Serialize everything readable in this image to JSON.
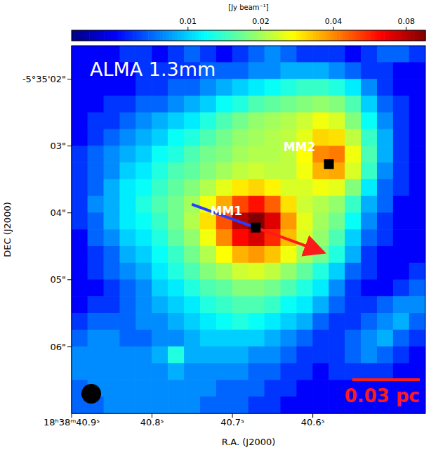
{
  "chart_data": {
    "type": "heatmap",
    "title": "ALMA 1.3mm",
    "x_label": "R.A. (J2000)",
    "y_label": "DEC (J2000)",
    "xlim": [
      40.9,
      40.46
    ],
    "xticks": [
      {
        "value": 40.9,
        "label": "18ʰ38ᵐ40.9ˢ"
      },
      {
        "value": 40.8,
        "label": "40.8ˢ"
      },
      {
        "value": 40.7,
        "label": "40.7ˢ"
      },
      {
        "value": 40.6,
        "label": "40.6ˢ"
      }
    ],
    "ylim": [
      7,
      1.5
    ],
    "yticks": [
      {
        "value": 2,
        "label": "-5°35'02\""
      },
      {
        "value": 3,
        "label": "03\""
      },
      {
        "value": 4,
        "label": "04\""
      },
      {
        "value": 5,
        "label": "05\""
      },
      {
        "value": 6,
        "label": "06\""
      }
    ],
    "colorbar": {
      "label": "[Jy beam⁻¹]",
      "range": [
        0.0033,
        0.096
      ],
      "ticks": [
        0.01,
        0.02,
        0.04,
        0.08
      ],
      "log": true
    },
    "scale_bar_label": "0.03 pc",
    "sources": [
      {
        "label": "MM1",
        "x": 40.671,
        "y": 4.22
      },
      {
        "label": "MM2",
        "x": 40.58,
        "y": 3.27
      }
    ],
    "heatmap": {
      "x": [
        40.89,
        40.87,
        40.85,
        40.83,
        40.81,
        40.79,
        40.77,
        40.75,
        40.73,
        40.71,
        40.69,
        40.67,
        40.65,
        40.63,
        40.61,
        40.59,
        40.57,
        40.55,
        40.53,
        40.51,
        40.49,
        40.47
      ],
      "y": [
        1.625,
        1.875,
        2.125,
        2.375,
        2.625,
        2.875,
        3.125,
        3.375,
        3.625,
        3.875,
        4.125,
        4.375,
        4.625,
        4.875,
        5.125,
        5.375,
        5.625,
        5.875,
        6.125,
        6.375,
        6.625,
        6.875
      ],
      "z": [
        [
          0.005,
          0.005,
          0.005,
          0.006,
          0.006,
          0.005,
          0.006,
          0.007,
          0.006,
          0.005,
          0.006,
          0.007,
          0.008,
          0.007,
          0.006,
          0.006,
          0.006,
          0.005,
          0.006,
          0.007,
          0.007,
          0.006
        ],
        [
          0.005,
          0.005,
          0.005,
          0.005,
          0.006,
          0.006,
          0.006,
          0.006,
          0.007,
          0.007,
          0.007,
          0.008,
          0.008,
          0.009,
          0.009,
          0.009,
          0.008,
          0.007,
          0.006,
          0.006,
          0.005,
          0.005
        ],
        [
          0.005,
          0.005,
          0.005,
          0.005,
          0.006,
          0.006,
          0.007,
          0.007,
          0.008,
          0.009,
          0.01,
          0.011,
          0.012,
          0.013,
          0.014,
          0.014,
          0.013,
          0.011,
          0.008,
          0.006,
          0.005,
          0.005
        ],
        [
          0.005,
          0.005,
          0.006,
          0.006,
          0.007,
          0.007,
          0.008,
          0.009,
          0.01,
          0.012,
          0.013,
          0.015,
          0.016,
          0.017,
          0.018,
          0.019,
          0.018,
          0.015,
          0.01,
          0.007,
          0.006,
          0.005
        ],
        [
          0.005,
          0.006,
          0.006,
          0.007,
          0.008,
          0.009,
          0.01,
          0.011,
          0.013,
          0.015,
          0.017,
          0.019,
          0.02,
          0.021,
          0.023,
          0.026,
          0.024,
          0.018,
          0.012,
          0.008,
          0.006,
          0.005
        ],
        [
          0.005,
          0.006,
          0.007,
          0.008,
          0.009,
          0.01,
          0.012,
          0.013,
          0.015,
          0.017,
          0.019,
          0.02,
          0.021,
          0.022,
          0.025,
          0.031,
          0.03,
          0.022,
          0.014,
          0.009,
          0.006,
          0.005
        ],
        [
          0.006,
          0.007,
          0.008,
          0.009,
          0.01,
          0.012,
          0.013,
          0.015,
          0.017,
          0.018,
          0.02,
          0.021,
          0.021,
          0.022,
          0.027,
          0.04,
          0.042,
          0.026,
          0.015,
          0.009,
          0.006,
          0.005
        ],
        [
          0.006,
          0.007,
          0.008,
          0.01,
          0.011,
          0.013,
          0.015,
          0.016,
          0.018,
          0.02,
          0.022,
          0.023,
          0.022,
          0.022,
          0.026,
          0.035,
          0.036,
          0.024,
          0.014,
          0.008,
          0.006,
          0.005
        ],
        [
          0.006,
          0.007,
          0.009,
          0.011,
          0.012,
          0.014,
          0.016,
          0.018,
          0.021,
          0.025,
          0.029,
          0.031,
          0.028,
          0.024,
          0.024,
          0.026,
          0.025,
          0.018,
          0.011,
          0.007,
          0.006,
          0.005
        ],
        [
          0.006,
          0.008,
          0.009,
          0.011,
          0.013,
          0.015,
          0.017,
          0.02,
          0.026,
          0.036,
          0.05,
          0.06,
          0.046,
          0.03,
          0.023,
          0.021,
          0.019,
          0.014,
          0.009,
          0.007,
          0.005,
          0.005
        ],
        [
          0.006,
          0.007,
          0.009,
          0.011,
          0.012,
          0.014,
          0.017,
          0.021,
          0.03,
          0.048,
          0.08,
          0.095,
          0.07,
          0.038,
          0.025,
          0.02,
          0.017,
          0.012,
          0.008,
          0.006,
          0.005,
          0.005
        ],
        [
          0.005,
          0.007,
          0.008,
          0.01,
          0.011,
          0.013,
          0.016,
          0.019,
          0.026,
          0.04,
          0.062,
          0.072,
          0.055,
          0.034,
          0.024,
          0.019,
          0.015,
          0.01,
          0.007,
          0.006,
          0.005,
          0.005
        ],
        [
          0.005,
          0.006,
          0.007,
          0.009,
          0.01,
          0.012,
          0.014,
          0.017,
          0.021,
          0.027,
          0.035,
          0.038,
          0.033,
          0.026,
          0.02,
          0.017,
          0.013,
          0.009,
          0.006,
          0.005,
          0.005,
          0.005
        ],
        [
          0.005,
          0.006,
          0.007,
          0.008,
          0.009,
          0.011,
          0.013,
          0.015,
          0.018,
          0.02,
          0.023,
          0.024,
          0.022,
          0.019,
          0.016,
          0.013,
          0.01,
          0.007,
          0.006,
          0.005,
          0.005,
          0.006
        ],
        [
          0.005,
          0.005,
          0.006,
          0.007,
          0.008,
          0.01,
          0.011,
          0.013,
          0.015,
          0.016,
          0.018,
          0.018,
          0.017,
          0.015,
          0.013,
          0.011,
          0.008,
          0.006,
          0.005,
          0.005,
          0.006,
          0.007
        ],
        [
          0.005,
          0.006,
          0.006,
          0.007,
          0.008,
          0.009,
          0.01,
          0.011,
          0.013,
          0.014,
          0.015,
          0.015,
          0.014,
          0.012,
          0.011,
          0.009,
          0.007,
          0.006,
          0.006,
          0.007,
          0.008,
          0.008
        ],
        [
          0.006,
          0.007,
          0.007,
          0.007,
          0.008,
          0.008,
          0.009,
          0.01,
          0.011,
          0.012,
          0.013,
          0.012,
          0.011,
          0.01,
          0.009,
          0.007,
          0.006,
          0.006,
          0.007,
          0.008,
          0.009,
          0.007
        ],
        [
          0.007,
          0.008,
          0.008,
          0.007,
          0.007,
          0.008,
          0.008,
          0.009,
          0.01,
          0.01,
          0.01,
          0.01,
          0.009,
          0.008,
          0.007,
          0.006,
          0.006,
          0.007,
          0.008,
          0.009,
          0.007,
          0.006
        ],
        [
          0.008,
          0.008,
          0.008,
          0.008,
          0.008,
          0.009,
          0.013,
          0.009,
          0.009,
          0.009,
          0.009,
          0.008,
          0.008,
          0.007,
          0.006,
          0.006,
          0.006,
          0.007,
          0.008,
          0.007,
          0.006,
          0.005
        ],
        [
          0.008,
          0.008,
          0.008,
          0.008,
          0.008,
          0.008,
          0.009,
          0.008,
          0.008,
          0.008,
          0.008,
          0.007,
          0.007,
          0.006,
          0.006,
          0.005,
          0.006,
          0.006,
          0.006,
          0.006,
          0.005,
          0.005
        ],
        [
          0.007,
          0.008,
          0.008,
          0.008,
          0.008,
          0.008,
          0.008,
          0.008,
          0.008,
          0.007,
          0.007,
          0.007,
          0.006,
          0.006,
          0.005,
          0.005,
          0.005,
          0.005,
          0.005,
          0.005,
          0.005,
          0.005
        ],
        [
          0.007,
          0.007,
          0.008,
          0.008,
          0.008,
          0.008,
          0.008,
          0.008,
          0.007,
          0.007,
          0.007,
          0.006,
          0.006,
          0.005,
          0.005,
          0.005,
          0.005,
          0.005,
          0.005,
          0.005,
          0.005,
          0.005
        ]
      ]
    }
  }
}
